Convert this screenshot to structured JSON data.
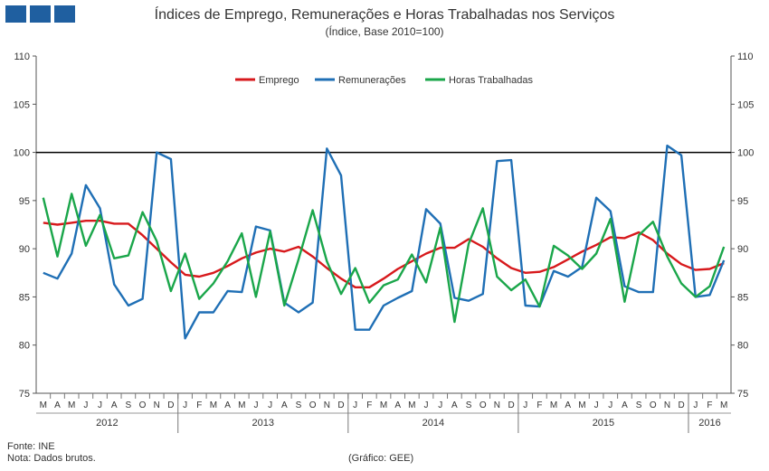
{
  "header": {
    "title": "Índices de Emprego, Remunerações e Horas Trabalhadas nos Serviços",
    "subtitle": "(Índice, Base 2010=100)"
  },
  "footer": {
    "source": "Fonte: INE",
    "note": "Nota: Dados brutos.",
    "credit": "(Gráfico: GEE)"
  },
  "chart_data": {
    "type": "line",
    "title": "Índices de Emprego, Remunerações e Horas Trabalhadas nos Serviços",
    "subtitle": "(Índice, Base 2010=100)",
    "ylim": [
      75,
      110
    ],
    "y_ticks": [
      75,
      80,
      85,
      90,
      95,
      100,
      105,
      110
    ],
    "reference_line": 100,
    "grid": false,
    "legend_position": "top-center",
    "axes": "left and right y-axes, identical scale",
    "x": [
      "M",
      "A",
      "M",
      "J",
      "J",
      "A",
      "S",
      "O",
      "N",
      "D",
      "J",
      "F",
      "M",
      "A",
      "M",
      "J",
      "J",
      "A",
      "S",
      "O",
      "N",
      "D",
      "J",
      "F",
      "M",
      "A",
      "M",
      "J",
      "J",
      "A",
      "S",
      "O",
      "N",
      "D",
      "J",
      "F",
      "M",
      "A",
      "M",
      "J",
      "J",
      "A",
      "S",
      "O",
      "N",
      "D",
      "J",
      "F",
      "M"
    ],
    "years": [
      {
        "label": "2012",
        "start": 0,
        "end": 9
      },
      {
        "label": "2013",
        "start": 10,
        "end": 21
      },
      {
        "label": "2014",
        "start": 22,
        "end": 33
      },
      {
        "label": "2015",
        "start": 34,
        "end": 45
      },
      {
        "label": "2016",
        "start": 46,
        "end": 48
      }
    ],
    "series": [
      {
        "name": "Emprego",
        "color": "#d7191c",
        "values": [
          92.7,
          92.5,
          92.7,
          92.9,
          92.9,
          92.6,
          92.6,
          91.4,
          90.0,
          88.6,
          87.3,
          87.1,
          87.5,
          88.2,
          89.0,
          89.6,
          90.0,
          89.7,
          90.2,
          89.2,
          88.0,
          86.9,
          86.0,
          86.0,
          86.9,
          87.9,
          88.7,
          89.5,
          90.1,
          90.1,
          91.0,
          90.2,
          89.0,
          88.0,
          87.5,
          87.6,
          88.1,
          88.9,
          89.7,
          90.4,
          91.2,
          91.1,
          91.7,
          90.9,
          89.5,
          88.4,
          87.8,
          87.9,
          88.5
        ]
      },
      {
        "name": "Remunerações",
        "color": "#1f6fb5",
        "values": [
          87.5,
          86.9,
          89.5,
          96.6,
          94.2,
          86.3,
          84.1,
          84.8,
          100.0,
          99.3,
          80.7,
          83.4,
          83.4,
          85.6,
          85.5,
          92.3,
          91.9,
          84.4,
          83.4,
          84.4,
          100.4,
          97.6,
          81.6,
          81.6,
          84.1,
          84.9,
          85.6,
          94.1,
          92.6,
          84.9,
          84.6,
          85.3,
          99.1,
          99.2,
          84.1,
          84.0,
          87.7,
          87.1,
          88.1,
          95.3,
          93.9,
          86.1,
          85.5,
          85.5,
          100.7,
          99.7,
          85.0,
          85.2,
          88.8
        ]
      },
      {
        "name": "Horas Trabalhadas",
        "color": "#1aa64a",
        "values": [
          95.3,
          89.2,
          95.7,
          90.3,
          93.5,
          89.0,
          89.3,
          93.8,
          90.8,
          85.6,
          89.5,
          84.8,
          86.4,
          88.7,
          91.6,
          85.0,
          91.8,
          84.1,
          88.9,
          94.0,
          88.7,
          85.3,
          88.0,
          84.4,
          86.2,
          86.8,
          89.4,
          86.5,
          92.2,
          82.4,
          90.5,
          94.2,
          87.1,
          85.7,
          86.8,
          84.0,
          90.3,
          89.3,
          87.9,
          89.5,
          93.1,
          84.5,
          91.4,
          92.8,
          89.2,
          86.4,
          85.0,
          86.1,
          90.2
        ]
      }
    ]
  }
}
